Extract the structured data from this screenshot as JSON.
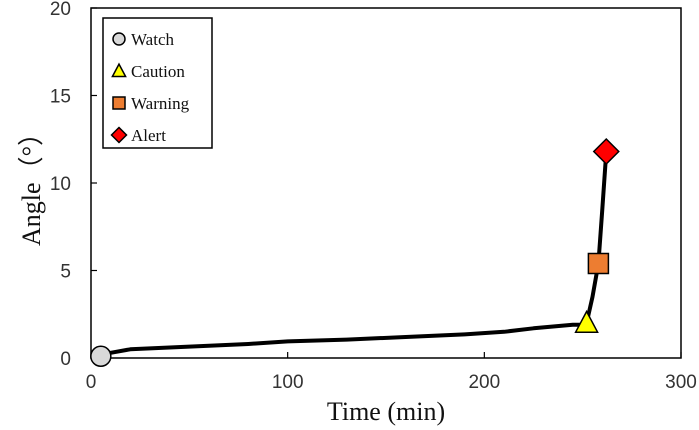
{
  "chart_data": {
    "type": "line",
    "xlabel": "Time (min)",
    "ylabel": "Angle（°）",
    "xlim": [
      0,
      300
    ],
    "ylim": [
      0,
      20
    ],
    "xticks": [
      "0",
      "100",
      "200",
      "300"
    ],
    "yticks": [
      "0",
      "5",
      "10",
      "15",
      "20"
    ],
    "grid": false,
    "legend_position": "top-left",
    "line": {
      "color": "#000000",
      "x": [
        5,
        10,
        20,
        30,
        50,
        80,
        100,
        130,
        160,
        190,
        210,
        225,
        240,
        245,
        250,
        252,
        255,
        258,
        260,
        262
      ],
      "y": [
        0.1,
        0.3,
        0.5,
        0.55,
        0.65,
        0.8,
        0.95,
        1.05,
        1.2,
        1.35,
        1.5,
        1.7,
        1.85,
        1.9,
        1.9,
        2.0,
        3.5,
        5.4,
        8.5,
        11.8
      ]
    },
    "markers": [
      {
        "name": "Watch",
        "shape": "circle",
        "color": "#d9d9d9",
        "x": 5,
        "y": 0.1
      },
      {
        "name": "Caution",
        "shape": "triangle",
        "color": "#ffff00",
        "x": 252,
        "y": 2.0
      },
      {
        "name": "Warning",
        "shape": "square",
        "color": "#ed7d31",
        "x": 258,
        "y": 5.4
      },
      {
        "name": "Alert",
        "shape": "diamond",
        "color": "#ff0000",
        "x": 262,
        "y": 11.8
      }
    ]
  }
}
